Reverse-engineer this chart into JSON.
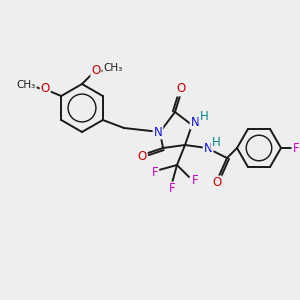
{
  "bg_color": "#eeeeee",
  "bond_color": "#1a1a1a",
  "bond_width": 1.4,
  "atom_colors": {
    "C": "#1a1a1a",
    "N": "#1010dd",
    "O": "#cc0000",
    "F": "#cc00cc",
    "H": "#008888"
  },
  "font_size": 8.5
}
